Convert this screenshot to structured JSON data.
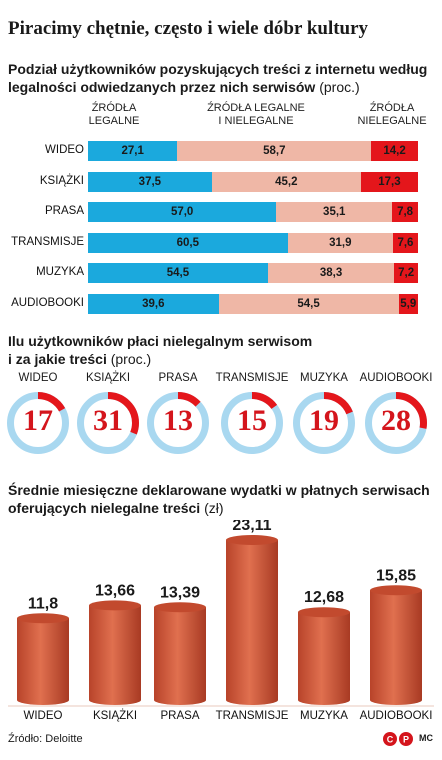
{
  "title": "Piracimy chętnie, często i wiele dóbr kultury",
  "section1": {
    "title_line1": "Podział użytkowników pozyskujących treści z internetu według",
    "title_line2": "legalności odwiedzanych przez nich serwisów",
    "unit": "(proc.)",
    "col_legal": [
      "ŹRÓDŁA",
      "LEGALNE"
    ],
    "col_mixed": [
      "ŹRÓDŁA LEGALNE",
      "I NIELEGALNE"
    ],
    "col_illegal": [
      "ŹRÓDŁA",
      "NIELEGALNE"
    ]
  },
  "section2": {
    "title_line1": "Ilu użytkowników płaci nielegalnym serwisom",
    "title_line2": "i za jakie treści",
    "unit": "(proc.)"
  },
  "section3": {
    "title_line1": "Średnie miesięczne deklarowane wydatki w płatnych serwisach",
    "title_line2": "oferujących nielegalne treści",
    "unit": "(zł)"
  },
  "source": "Źródło: Deloitte",
  "logo_text": "©P",
  "credit": "MC",
  "colors": {
    "legal": "#1ba9dd",
    "mixed": "#efb7a6",
    "illegal": "#e4161b",
    "ring_bg": "#a9d8f0",
    "ring_fg": "#e4161b",
    "cylinder": "#d35a3a"
  },
  "chart_data": [
    {
      "type": "bar",
      "orientation": "horizontal",
      "stacked": true,
      "categories": [
        "WIDEO",
        "KSIĄŻKI",
        "PRASA",
        "TRANSMISJE",
        "MUZYKA",
        "AUDIOBOOKI"
      ],
      "series": [
        {
          "name": "ŹRÓDŁA LEGALNE",
          "values": [
            27.1,
            37.5,
            57.0,
            60.5,
            54.5,
            39.6
          ],
          "labels": [
            "27,1",
            "37,5",
            "57,0",
            "60,5",
            "54,5",
            "39,6"
          ]
        },
        {
          "name": "ŹRÓDŁA LEGALNE I NIELEGALNE",
          "values": [
            58.7,
            45.2,
            35.1,
            31.9,
            38.3,
            54.5
          ],
          "labels": [
            "58,7",
            "45,2",
            "35,1",
            "31,9",
            "38,3",
            "54,5"
          ]
        },
        {
          "name": "ŹRÓDŁA NIELEGALNE",
          "values": [
            14.2,
            17.3,
            7.8,
            7.6,
            7.2,
            5.9
          ],
          "labels": [
            "14,2",
            "17,3",
            "7,8",
            "7,6",
            "7,2",
            "5,9"
          ]
        }
      ]
    },
    {
      "type": "pie",
      "style": "donut",
      "categories": [
        "WIDEO",
        "KSIĄŻKI",
        "PRASA",
        "TRANSMISJE",
        "MUZYKA",
        "AUDIOBOOKI"
      ],
      "values": [
        17,
        31,
        13,
        15,
        19,
        28
      ]
    },
    {
      "type": "bar",
      "style": "cylinder",
      "categories": [
        "WIDEO",
        "KSIĄŻKI",
        "PRASA",
        "TRANSMISJE",
        "MUZYKA",
        "AUDIOBOOKI"
      ],
      "values": [
        11.8,
        13.66,
        13.39,
        23.11,
        12.68,
        15.85
      ],
      "labels": [
        "11,8",
        "13,66",
        "13,39",
        "23,11",
        "12,68",
        "15,85"
      ]
    }
  ]
}
